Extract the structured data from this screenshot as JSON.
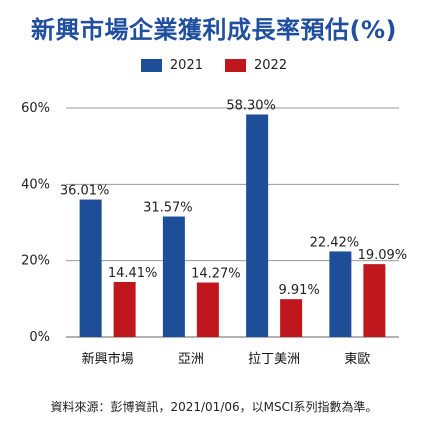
{
  "chart_data": {
    "type": "bar",
    "title": "新興市場企業獲利成長率預估(%)",
    "categories": [
      "新興市場",
      "亞洲",
      "拉丁美洲",
      "東歐"
    ],
    "series": [
      {
        "name": "2021",
        "values": [
          36.01,
          31.57,
          58.3,
          22.42
        ],
        "labels": [
          "36.01%",
          "31.57%",
          "58.30%",
          "22.42%"
        ],
        "color": "#1f4e99"
      },
      {
        "name": "2022",
        "values": [
          14.41,
          14.27,
          9.91,
          19.09
        ],
        "labels": [
          "14.41%",
          "14.27%",
          "9.91%",
          "19.09%"
        ],
        "color": "#c0161e"
      }
    ],
    "ylim": [
      0,
      60
    ],
    "yticks": [
      0,
      20,
      40,
      60
    ],
    "ytick_labels": [
      "0%",
      "20%",
      "40%",
      "60%"
    ],
    "grid": true,
    "legend": "top-center"
  },
  "source": "資料來源：彭博資訊，2021/01/06，以MSCI系列指數為準。"
}
